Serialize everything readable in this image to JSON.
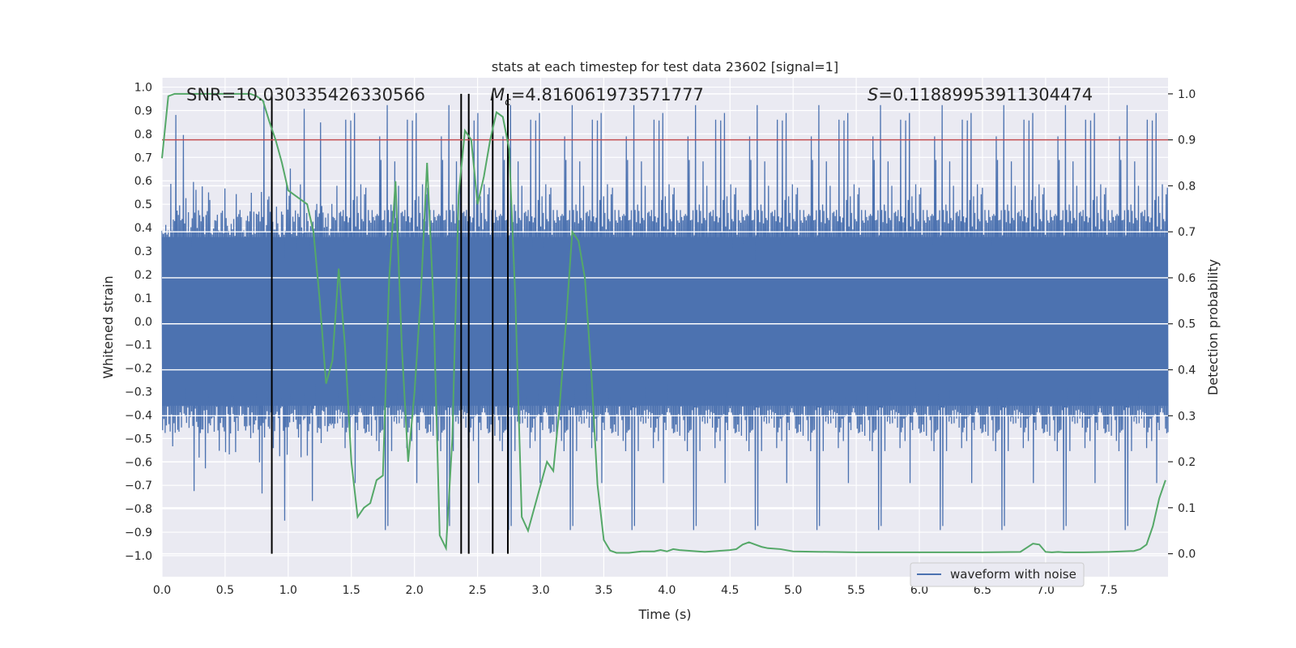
{
  "chart_data": {
    "type": "line",
    "title": "stats at each timestep for test data 23602 [signal=1]",
    "xlabel": "Time (s)",
    "ylabel_left": "Whitened strain",
    "ylabel_right": "Detection probability",
    "xlim": [
      0,
      7.97
    ],
    "ylim_left": [
      -1.09,
      1.04
    ],
    "ylim_right": [
      -0.05,
      1.035
    ],
    "x_ticks": [
      "0.0",
      "0.5",
      "1.0",
      "1.5",
      "2.0",
      "2.5",
      "3.0",
      "3.5",
      "4.0",
      "4.5",
      "5.0",
      "5.5",
      "6.0",
      "6.5",
      "7.0",
      "7.5"
    ],
    "x_tick_values": [
      0,
      0.5,
      1,
      1.5,
      2,
      2.5,
      3,
      3.5,
      4,
      4.5,
      5,
      5.5,
      6,
      6.5,
      7,
      7.5
    ],
    "y_left_ticks": [
      "1.0",
      "0.9",
      "0.8",
      "0.7",
      "0.6",
      "0.5",
      "0.4",
      "0.3",
      "0.2",
      "0.1",
      "0.0",
      "-0.1",
      "-0.2",
      "-0.3",
      "-0.4",
      "-0.5",
      "-0.6",
      "-0.7",
      "-0.8",
      "-0.9",
      "-1.0"
    ],
    "y_left_tick_values": [
      1.0,
      0.9,
      0.8,
      0.7,
      0.6,
      0.5,
      0.4,
      0.3,
      0.2,
      0.1,
      0.0,
      -0.1,
      -0.2,
      -0.3,
      -0.4,
      -0.5,
      -0.6,
      -0.7,
      -0.8,
      -0.9,
      -1.0
    ],
    "y_right_ticks": [
      "1.0",
      "0.9",
      "0.8",
      "0.7",
      "0.6",
      "0.5",
      "0.4",
      "0.3",
      "0.2",
      "0.1",
      "0.0"
    ],
    "y_right_tick_values": [
      1.0,
      0.9,
      0.8,
      0.7,
      0.6,
      0.5,
      0.4,
      0.3,
      0.2,
      0.1,
      0.0
    ],
    "annotations": {
      "snr": "SNR=10.030335426330566",
      "mc": "=4.816061973571777",
      "mc_symbol": "M",
      "mc_sub": "c",
      "s": "=0.11889953911304474",
      "s_symbol": "S"
    },
    "legend": {
      "label": "waveform with noise",
      "position": "lower-right"
    },
    "waveform": {
      "name": "waveform with noise",
      "color": "#4c72b0",
      "sample_count": 1600,
      "note": "dense noise band roughly +/-0.37 with spikes up to about +/-0.95"
    },
    "threshold": {
      "value": 0.9,
      "axis": "right",
      "color": "#c44e52"
    },
    "vertical_markers": [
      0.87,
      2.37,
      2.43,
      2.62,
      2.74
    ],
    "marker_color": "#000000",
    "probability_series": {
      "name": "detection probability",
      "color": "#55a868",
      "x": [
        0.0,
        0.05,
        0.1,
        0.2,
        0.3,
        0.4,
        0.5,
        0.6,
        0.7,
        0.75,
        0.8,
        0.85,
        0.9,
        0.95,
        1.0,
        1.05,
        1.1,
        1.15,
        1.2,
        1.25,
        1.3,
        1.35,
        1.4,
        1.45,
        1.5,
        1.55,
        1.6,
        1.65,
        1.7,
        1.75,
        1.8,
        1.85,
        1.9,
        1.95,
        2.0,
        2.05,
        2.1,
        2.15,
        2.2,
        2.25,
        2.3,
        2.35,
        2.4,
        2.45,
        2.5,
        2.55,
        2.6,
        2.65,
        2.7,
        2.75,
        2.8,
        2.85,
        2.9,
        2.95,
        3.0,
        3.05,
        3.1,
        3.15,
        3.2,
        3.25,
        3.3,
        3.35,
        3.4,
        3.45,
        3.5,
        3.55,
        3.6,
        3.7,
        3.8,
        3.9,
        3.95,
        4.0,
        4.05,
        4.1,
        4.2,
        4.3,
        4.4,
        4.5,
        4.55,
        4.6,
        4.65,
        4.7,
        4.75,
        4.8,
        4.9,
        5.0,
        5.5,
        6.0,
        6.5,
        6.8,
        6.9,
        6.95,
        7.0,
        7.05,
        7.1,
        7.15,
        7.2,
        7.3,
        7.5,
        7.7,
        7.75,
        7.8,
        7.85,
        7.9,
        7.95
      ],
      "y": [
        0.86,
        0.995,
        1.0,
        1.0,
        1.0,
        1.0,
        1.0,
        1.0,
        1.0,
        0.995,
        0.985,
        0.94,
        0.9,
        0.85,
        0.79,
        0.78,
        0.77,
        0.76,
        0.7,
        0.55,
        0.37,
        0.42,
        0.62,
        0.45,
        0.2,
        0.08,
        0.1,
        0.11,
        0.16,
        0.17,
        0.6,
        0.81,
        0.45,
        0.2,
        0.35,
        0.56,
        0.85,
        0.55,
        0.04,
        0.012,
        0.25,
        0.78,
        0.92,
        0.9,
        0.76,
        0.82,
        0.9,
        0.96,
        0.95,
        0.88,
        0.55,
        0.08,
        0.05,
        0.1,
        0.15,
        0.2,
        0.18,
        0.32,
        0.5,
        0.7,
        0.68,
        0.6,
        0.4,
        0.15,
        0.03,
        0.007,
        0.002,
        0.002,
        0.005,
        0.005,
        0.008,
        0.005,
        0.01,
        0.008,
        0.006,
        0.004,
        0.006,
        0.008,
        0.01,
        0.02,
        0.025,
        0.02,
        0.015,
        0.012,
        0.01,
        0.005,
        0.003,
        0.003,
        0.003,
        0.004,
        0.022,
        0.02,
        0.004,
        0.003,
        0.004,
        0.003,
        0.003,
        0.003,
        0.004,
        0.006,
        0.01,
        0.02,
        0.06,
        0.12,
        0.16
      ]
    }
  }
}
